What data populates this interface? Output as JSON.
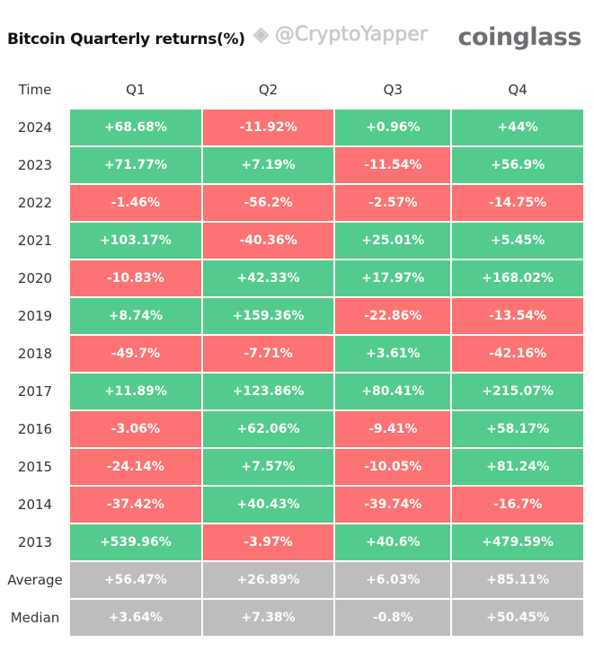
{
  "title": "Bitcoin Quarterly returns(%)",
  "logo": "coinglass",
  "watermark": "@CryptoYapper",
  "colors": {
    "positive": "#52cb8c",
    "negative": "#fd7272",
    "stat": "#bdbdbd"
  },
  "chart_data": {
    "type": "table",
    "title": "Bitcoin Quarterly returns(%)",
    "columns": [
      "Time",
      "Q1",
      "Q2",
      "Q3",
      "Q4"
    ],
    "rows": [
      {
        "label": "2024",
        "values": [
          "+68.68%",
          "-11.92%",
          "+0.96%",
          "+44%"
        ]
      },
      {
        "label": "2023",
        "values": [
          "+71.77%",
          "+7.19%",
          "-11.54%",
          "+56.9%"
        ]
      },
      {
        "label": "2022",
        "values": [
          "-1.46%",
          "-56.2%",
          "-2.57%",
          "-14.75%"
        ]
      },
      {
        "label": "2021",
        "values": [
          "+103.17%",
          "-40.36%",
          "+25.01%",
          "+5.45%"
        ]
      },
      {
        "label": "2020",
        "values": [
          "-10.83%",
          "+42.33%",
          "+17.97%",
          "+168.02%"
        ]
      },
      {
        "label": "2019",
        "values": [
          "+8.74%",
          "+159.36%",
          "-22.86%",
          "-13.54%"
        ]
      },
      {
        "label": "2018",
        "values": [
          "-49.7%",
          "-7.71%",
          "+3.61%",
          "-42.16%"
        ]
      },
      {
        "label": "2017",
        "values": [
          "+11.89%",
          "+123.86%",
          "+80.41%",
          "+215.07%"
        ]
      },
      {
        "label": "2016",
        "values": [
          "-3.06%",
          "+62.06%",
          "-9.41%",
          "+58.17%"
        ]
      },
      {
        "label": "2015",
        "values": [
          "-24.14%",
          "+7.57%",
          "-10.05%",
          "+81.24%"
        ]
      },
      {
        "label": "2014",
        "values": [
          "-37.42%",
          "+40.43%",
          "-39.74%",
          "-16.7%"
        ]
      },
      {
        "label": "2013",
        "values": [
          "+539.96%",
          "-3.97%",
          "+40.6%",
          "+479.59%"
        ]
      },
      {
        "label": "Average",
        "stat": true,
        "values": [
          "+56.47%",
          "+26.89%",
          "+6.03%",
          "+85.11%"
        ]
      },
      {
        "label": "Median",
        "stat": true,
        "values": [
          "+3.64%",
          "+7.38%",
          "-0.8%",
          "+50.45%"
        ]
      }
    ]
  }
}
